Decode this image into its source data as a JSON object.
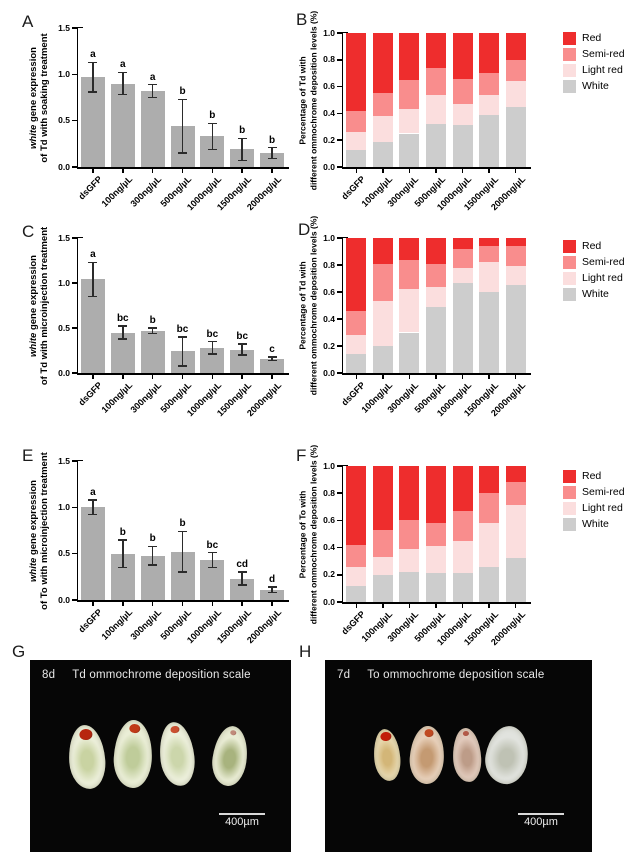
{
  "panel_letters": [
    "A",
    "B",
    "C",
    "D",
    "E",
    "F",
    "G",
    "H"
  ],
  "colors": {
    "red": "#EE2D2D",
    "semi_red": "#F98D8D",
    "light_red": "#FBDEDE",
    "white_gray": "#CDCDCD",
    "bar_gray": "#ADADAD",
    "axis": "#000000",
    "error_bar": "#2B2B2B",
    "photo_bg": "#060606",
    "photo_text": "#E8E8E8"
  },
  "chart_data": [
    {
      "id": "A",
      "type": "bar",
      "ylabel_italic": "white",
      "ylabel_line1": " gene expression",
      "ylabel_line2": "of Td with soaking treatment",
      "ylim": [
        0,
        1.5
      ],
      "yticks": [
        "0.0",
        "0.5",
        "1.0",
        "1.5"
      ],
      "categories": [
        "dsGFP",
        "100ng/µL",
        "300ng/µL",
        "500ng/µL",
        "1000ng/µL",
        "1500ng/µL",
        "2000ng/µL"
      ],
      "values": [
        0.97,
        0.9,
        0.82,
        0.44,
        0.33,
        0.19,
        0.15
      ],
      "errors": [
        0.16,
        0.12,
        0.07,
        0.29,
        0.14,
        0.12,
        0.06
      ],
      "sig_letters": [
        "a",
        "a",
        "a",
        "b",
        "b",
        "b",
        "b"
      ],
      "bar_color": "#ADADAD",
      "grid": false
    },
    {
      "id": "B",
      "type": "stacked_bar",
      "ylabel_line1": "Percentage of Td with",
      "ylabel_line2": "different ommochrome deposition levels (%)",
      "ylim": [
        0,
        1.0
      ],
      "yticks": [
        "0.0",
        "0.2",
        "0.4",
        "0.6",
        "0.8",
        "1.0"
      ],
      "categories": [
        "dsGFP",
        "100ng/µL",
        "300ng/µL",
        "500ng/µL",
        "1000ng/µL",
        "1500ng/µL",
        "2000ng/µL"
      ],
      "series": [
        {
          "name": "White",
          "color": "#CDCDCD",
          "values": [
            0.13,
            0.19,
            0.25,
            0.32,
            0.31,
            0.39,
            0.45
          ]
        },
        {
          "name": "Light red",
          "color": "#FBDEDE",
          "values": [
            0.13,
            0.19,
            0.18,
            0.22,
            0.16,
            0.15,
            0.19
          ]
        },
        {
          "name": "Semi-red",
          "color": "#F98D8D",
          "values": [
            0.16,
            0.17,
            0.22,
            0.2,
            0.19,
            0.16,
            0.16
          ]
        },
        {
          "name": "Red",
          "color": "#EE2D2D",
          "values": [
            0.58,
            0.45,
            0.35,
            0.26,
            0.34,
            0.3,
            0.2
          ]
        }
      ],
      "legend": [
        "Red",
        "Semi-red",
        "Light red",
        "White"
      ],
      "legend_position": "right",
      "grid": false
    },
    {
      "id": "C",
      "type": "bar",
      "ylabel_italic": "white",
      "ylabel_line1": " gene expression",
      "ylabel_line2": "of Td with microinjection treatment",
      "ylim": [
        0,
        1.5
      ],
      "yticks": [
        "0.0",
        "0.5",
        "1.0",
        "1.5"
      ],
      "categories": [
        "dsGFP",
        "100ng/µL",
        "300ng/µL",
        "500ng/µL",
        "1000ng/µL",
        "1500ng/µL",
        "2000ng/µL"
      ],
      "values": [
        1.04,
        0.45,
        0.47,
        0.24,
        0.28,
        0.26,
        0.16
      ],
      "errors": [
        0.19,
        0.07,
        0.03,
        0.16,
        0.07,
        0.06,
        0.02
      ],
      "sig_letters": [
        "a",
        "bc",
        "b",
        "bc",
        "bc",
        "bc",
        "c"
      ],
      "bar_color": "#ADADAD",
      "grid": false
    },
    {
      "id": "D",
      "type": "stacked_bar",
      "ylabel_line1": "Percentage of Td with",
      "ylabel_line2": "different ommochrome deposition levels (%)",
      "ylim": [
        0,
        1.0
      ],
      "yticks": [
        "0.0",
        "0.2",
        "0.4",
        "0.6",
        "0.8",
        "1.0"
      ],
      "categories": [
        "dsGFP",
        "100ng/µL",
        "300ng/µL",
        "500ng/µL",
        "1000ng/µL",
        "1500ng/µL",
        "2000ng/µL"
      ],
      "series": [
        {
          "name": "White",
          "color": "#CDCDCD",
          "values": [
            0.14,
            0.2,
            0.3,
            0.49,
            0.67,
            0.6,
            0.65
          ]
        },
        {
          "name": "Light red",
          "color": "#FBDEDE",
          "values": [
            0.14,
            0.33,
            0.32,
            0.15,
            0.11,
            0.22,
            0.14
          ]
        },
        {
          "name": "Semi-red",
          "color": "#F98D8D",
          "values": [
            0.18,
            0.28,
            0.22,
            0.17,
            0.14,
            0.12,
            0.15
          ]
        },
        {
          "name": "Red",
          "color": "#EE2D2D",
          "values": [
            0.54,
            0.19,
            0.16,
            0.19,
            0.08,
            0.06,
            0.06
          ]
        }
      ],
      "legend": [
        "Red",
        "Semi-red",
        "Light red",
        "White"
      ],
      "legend_position": "right",
      "grid": false
    },
    {
      "id": "E",
      "type": "bar",
      "ylabel_italic": "white",
      "ylabel_line1": " gene expression",
      "ylabel_line2": "of To with microinjection treatment",
      "ylim": [
        0,
        1.5
      ],
      "yticks": [
        "0.0",
        "0.5",
        "1.0",
        "1.5"
      ],
      "categories": [
        "dsGFP",
        "100ng/µL",
        "300ng/µL",
        "500ng/µL",
        "1000ng/µL",
        "1500ng/µL",
        "2000ng/µL"
      ],
      "values": [
        1.0,
        0.5,
        0.48,
        0.52,
        0.43,
        0.23,
        0.11
      ],
      "errors": [
        0.08,
        0.15,
        0.1,
        0.22,
        0.08,
        0.07,
        0.03
      ],
      "sig_letters": [
        "a",
        "b",
        "b",
        "b",
        "bc",
        "cd",
        "d"
      ],
      "bar_color": "#ADADAD",
      "grid": false
    },
    {
      "id": "F",
      "type": "stacked_bar",
      "ylabel_line1": "Percentage of To with",
      "ylabel_line2": "different ommochrome deposition levels (%)",
      "ylim": [
        0,
        1.0
      ],
      "yticks": [
        "0.0",
        "0.2",
        "0.4",
        "0.6",
        "0.8",
        "1.0"
      ],
      "categories": [
        "dsGFP",
        "100ng/µL",
        "300ng/µL",
        "500ng/µL",
        "1000ng/µL",
        "1500ng/µL",
        "2000ng/µL"
      ],
      "series": [
        {
          "name": "White",
          "color": "#CDCDCD",
          "values": [
            0.12,
            0.2,
            0.22,
            0.21,
            0.21,
            0.26,
            0.32
          ]
        },
        {
          "name": "Light red",
          "color": "#FBDEDE",
          "values": [
            0.14,
            0.13,
            0.17,
            0.2,
            0.24,
            0.32,
            0.39
          ]
        },
        {
          "name": "Semi-red",
          "color": "#F98D8D",
          "values": [
            0.16,
            0.2,
            0.21,
            0.17,
            0.22,
            0.22,
            0.17
          ]
        },
        {
          "name": "Red",
          "color": "#EE2D2D",
          "values": [
            0.58,
            0.47,
            0.4,
            0.42,
            0.33,
            0.2,
            0.12
          ]
        }
      ],
      "legend": [
        "Red",
        "Semi-red",
        "Light red",
        "White"
      ],
      "legend_position": "right",
      "grid": false
    }
  ],
  "photos": [
    {
      "id": "G",
      "day": "8d",
      "title": "Td ommochrome deposition scale",
      "scalebar": "400µm",
      "pupae": [
        {
          "body": "#ecefda",
          "core": "#c9d3a2",
          "eye": "#b7260f",
          "eye_size": 13
        },
        {
          "body": "#eaeed6",
          "core": "#bfcc9a",
          "eye": "#c03a17",
          "eye_size": 11
        },
        {
          "body": "#edf0dc",
          "core": "#ccd6ab",
          "eye": "#cb5030",
          "eye_size": 9
        },
        {
          "body": "#e9ecd4",
          "core": "#a8b37e",
          "eye": "#c08a7a",
          "eye_size": 6
        }
      ]
    },
    {
      "id": "H",
      "day": "7d",
      "title": "To ommochrome deposition scale",
      "scalebar": "400µm",
      "pupae": [
        {
          "body": "#e8d8ae",
          "core": "#d3b678",
          "eye": "#c21d0a",
          "eye_size": 11
        },
        {
          "body": "#e7cfb9",
          "core": "#c49a72",
          "eye": "#c04a22",
          "eye_size": 9
        },
        {
          "body": "#e2cabc",
          "core": "#bd9c88",
          "eye": "#b35948",
          "eye_size": 6
        },
        {
          "body": "#e1e3de",
          "core": "#bfc2b4",
          "eye": "",
          "eye_size": 0
        }
      ]
    }
  ]
}
